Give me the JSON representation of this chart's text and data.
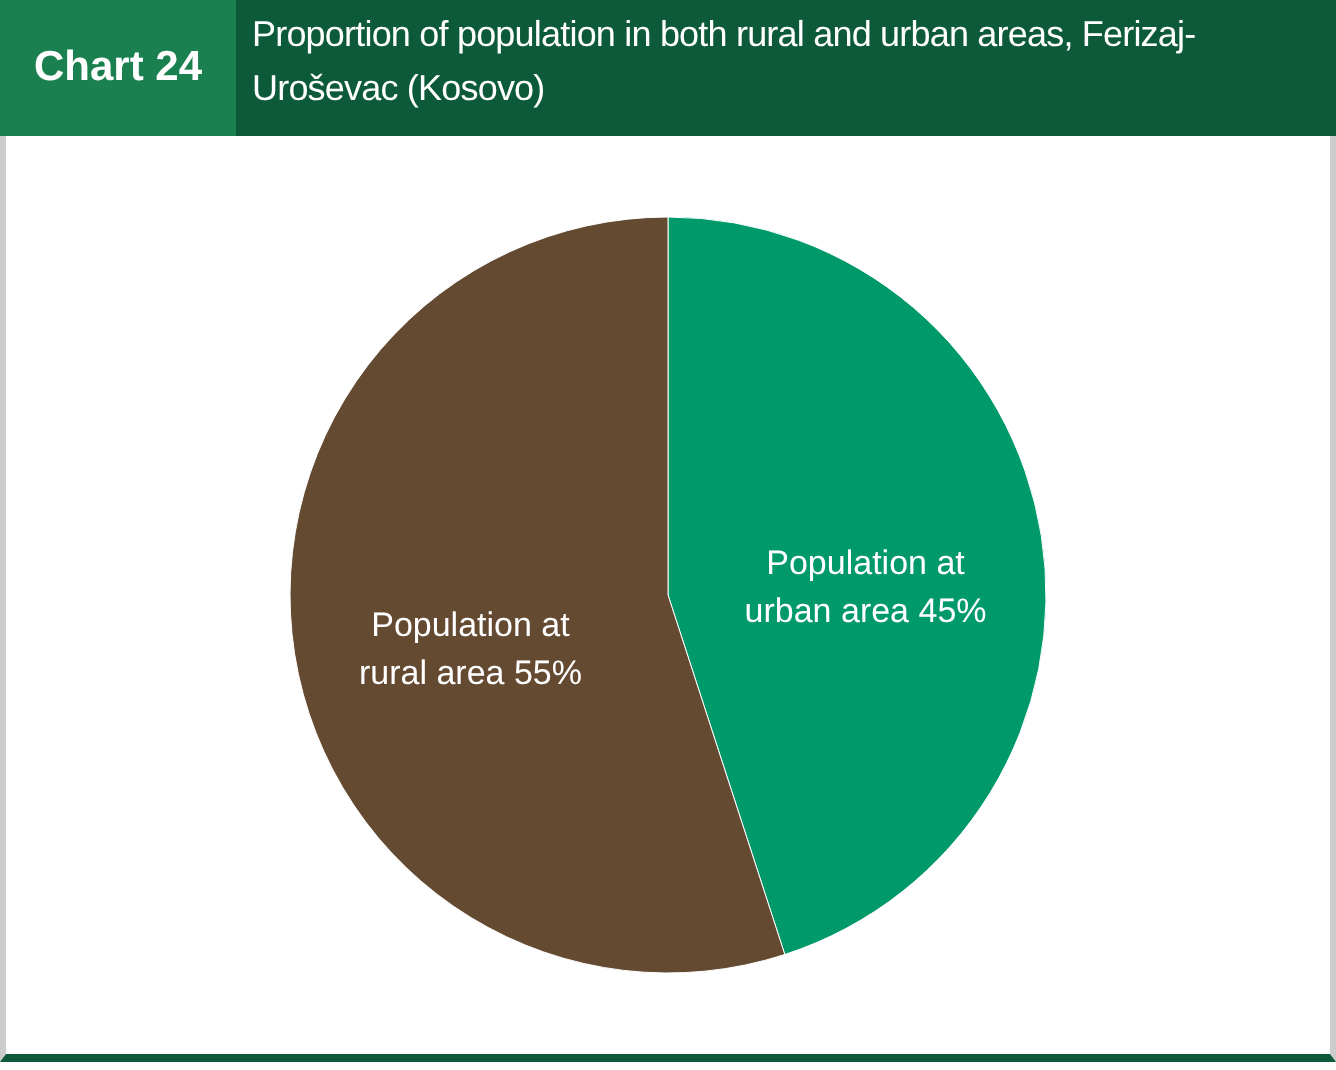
{
  "chart_data": {
    "type": "pie",
    "title": "Proportion of population in both rural and urban areas, Ferizaj-Uroševac (Kosovo)",
    "annotations": [
      "Chart 24"
    ],
    "categories": [
      "Population at urban area",
      "Population at rural area"
    ],
    "values": [
      45,
      55
    ],
    "value_labels": [
      "45%",
      "55%"
    ],
    "colors": [
      "#00996a",
      "#654a32"
    ]
  }
}
